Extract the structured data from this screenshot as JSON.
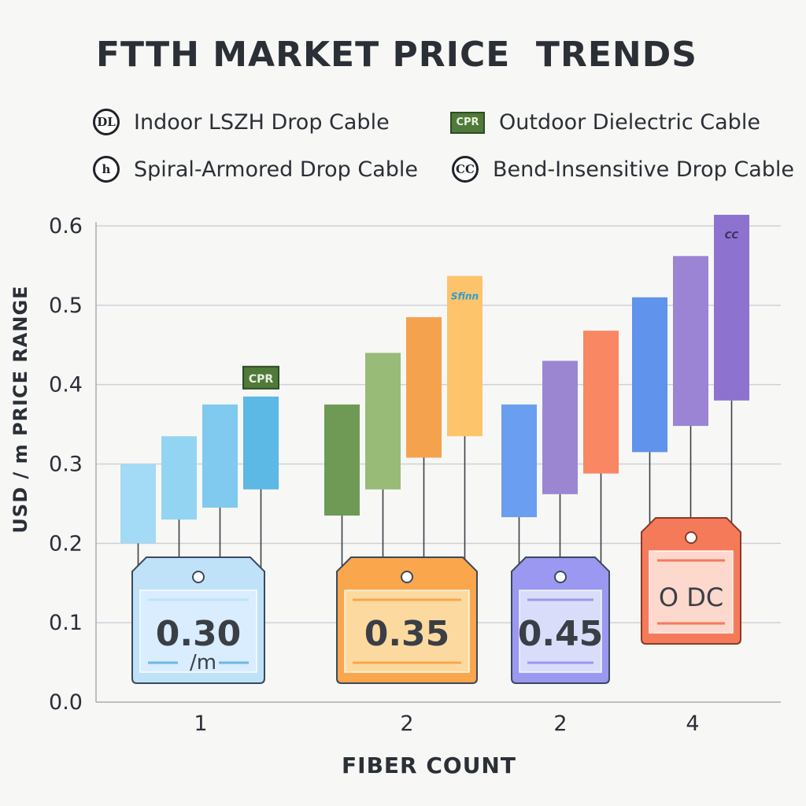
{
  "chart_data": {
    "type": "bar",
    "title": "FTTH MARKET PRICE  TRENDS",
    "xlabel": "FIBER COUNT",
    "ylabel": "USD / m PRICE RANGE",
    "ylim": [
      0,
      0.6
    ],
    "yticks": [
      "0.0",
      "0.1",
      "0.2",
      "0.3",
      "0.4",
      "0.5",
      "0.6"
    ],
    "grid": true,
    "legend": {
      "placement": "top",
      "items": [
        {
          "label": "Indoor LSZH Drop Cable",
          "icon": "dl-circle-icon",
          "icon_text": "DL"
        },
        {
          "label": "Outdoor Dielectric Cable",
          "icon": "cpr-box-icon",
          "icon_text": "CPR"
        },
        {
          "label": "Spiral-Armored Drop Cable",
          "icon": "h-circle-icon",
          "icon_text": "h"
        },
        {
          "label": "Bend-Insensitive Drop Cable",
          "icon": "cc-circle-icon",
          "icon_text": "CC"
        }
      ]
    },
    "groups": [
      {
        "category": "1",
        "bars": [
          {
            "low": 0.2,
            "high": 0.3,
            "color": "#a3daf5"
          },
          {
            "low": 0.23,
            "high": 0.335,
            "color": "#94d4f3"
          },
          {
            "low": 0.245,
            "high": 0.375,
            "color": "#7fcaee"
          },
          {
            "low": 0.268,
            "high": 0.385,
            "color": "#5cb8e4",
            "badge": "CPR"
          }
        ],
        "tag": {
          "value": "0.30",
          "unit": "/m",
          "fill": "#bfe2f8",
          "inner": "#dcefff",
          "stroke": "#3a4a5c"
        }
      },
      {
        "category": "2",
        "bars": [
          {
            "low": 0.235,
            "high": 0.375,
            "color": "#6f9a55"
          },
          {
            "low": 0.268,
            "high": 0.44,
            "color": "#98bb78"
          },
          {
            "low": 0.308,
            "high": 0.485,
            "color": "#f5a24f"
          },
          {
            "low": 0.335,
            "high": 0.537,
            "color": "#fdc46c",
            "badge": "Sfinn"
          }
        ],
        "tag": {
          "value": "0.35",
          "unit": "",
          "fill": "#f9a64c",
          "inner": "#fde0a8",
          "stroke": "#3a4a5c"
        }
      },
      {
        "category": "2",
        "bars": [
          {
            "low": 0.233,
            "high": 0.375,
            "color": "#6a9ef0"
          },
          {
            "low": 0.262,
            "high": 0.43,
            "color": "#9b86d2"
          },
          {
            "low": 0.288,
            "high": 0.468,
            "color": "#f98764"
          }
        ],
        "tag": {
          "value": "0.45",
          "unit": "",
          "fill": "#9a98f0",
          "inner": "#e2e5fb",
          "stroke": "#3a4a5c"
        }
      },
      {
        "category": "4",
        "bars": [
          {
            "low": 0.315,
            "high": 0.51,
            "color": "#5f93ec"
          },
          {
            "low": 0.348,
            "high": 0.562,
            "color": "#9a84d3"
          },
          {
            "low": 0.38,
            "high": 0.614,
            "color": "#8d72cf",
            "badge": "CC"
          }
        ],
        "tag": {
          "value": "O DC",
          "unit": "",
          "fill": "#f57a5a",
          "inner": "#fde3da",
          "stroke": "#8a3a2a"
        }
      }
    ]
  }
}
